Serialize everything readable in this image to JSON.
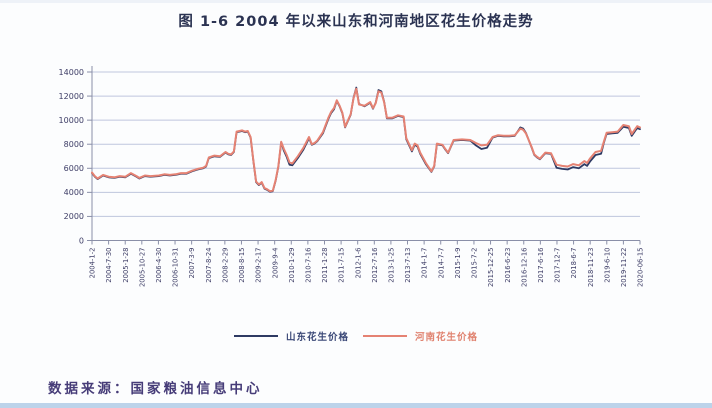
{
  "page": {
    "title": "图 1-6  2004 年以来山东和河南地区花生价格走势",
    "source_note": "数据来源：国家粮油信息中心"
  },
  "colors": {
    "shandong_line": "#2e3a63",
    "henan_line": "#e58273",
    "grid": "#bfc6dd",
    "axis": "#8a8fa8",
    "tick_text": "#3d3d66",
    "title_text": "#2b3352",
    "source_text": "#463c78",
    "bottom_strip": "#bcd3ea"
  },
  "chart_data": {
    "type": "line",
    "title": "图 1-6  2004 年以来山东和河南地区花生价格走势",
    "xlabel": "",
    "ylabel": "",
    "ylim": [
      0,
      14000
    ],
    "grid": true,
    "legend_position": "bottom",
    "y_ticks": [
      14000,
      12000,
      10000,
      8000,
      6000,
      4000,
      2000,
      0
    ],
    "x_tick_labels": [
      "2004-1-2",
      "2004-7-30",
      "2005-1-28",
      "2005-10-27",
      "2006-4-30",
      "2006-10-31",
      "2007-3-9",
      "2007-8-24",
      "2008-2-29",
      "2008-8-15",
      "2009-2-17",
      "2009-9-4",
      "2010-1-29",
      "2010-7-16",
      "2011-1-28",
      "2011-7-15",
      "2012-1-6",
      "2012-7-16",
      "2013-1-25",
      "2013-7-13",
      "2014-1-7",
      "2014-7-7",
      "2015-1-9",
      "2015-7-2",
      "2015-12-25",
      "2016-6-23",
      "2016-12-16",
      "2017-6-16",
      "2017-12-7",
      "2018-6-7",
      "2018-11-23",
      "2019-6-10",
      "2019-11-22",
      "2020-06-15"
    ],
    "x_unit": "months-since-2004-01",
    "x_range_months": [
      0,
      197
    ],
    "series": [
      {
        "name": "山东花生价格",
        "color": "#2e3a63",
        "points": [
          [
            0,
            5600
          ],
          [
            1,
            5300
          ],
          [
            2,
            5100
          ],
          [
            4,
            5400
          ],
          [
            6,
            5250
          ],
          [
            8,
            5200
          ],
          [
            10,
            5300
          ],
          [
            12,
            5250
          ],
          [
            14,
            5550
          ],
          [
            16,
            5300
          ],
          [
            17,
            5150
          ],
          [
            19,
            5350
          ],
          [
            21,
            5300
          ],
          [
            24,
            5350
          ],
          [
            26,
            5450
          ],
          [
            28,
            5400
          ],
          [
            30,
            5450
          ],
          [
            32,
            5550
          ],
          [
            34,
            5550
          ],
          [
            36,
            5750
          ],
          [
            38,
            5900
          ],
          [
            40,
            6000
          ],
          [
            41,
            6150
          ],
          [
            42,
            6850
          ],
          [
            44,
            7000
          ],
          [
            46,
            6950
          ],
          [
            48,
            7300
          ],
          [
            49,
            7150
          ],
          [
            50,
            7100
          ],
          [
            51,
            7350
          ],
          [
            52,
            9000
          ],
          [
            54,
            9100
          ],
          [
            55,
            9000
          ],
          [
            56,
            9050
          ],
          [
            57,
            8550
          ],
          [
            58,
            6650
          ],
          [
            59,
            4850
          ],
          [
            60,
            4600
          ],
          [
            61,
            4800
          ],
          [
            62,
            4300
          ],
          [
            63,
            4200
          ],
          [
            64,
            4050
          ],
          [
            65,
            4100
          ],
          [
            66,
            4950
          ],
          [
            67,
            6150
          ],
          [
            68,
            8150
          ],
          [
            69,
            7450
          ],
          [
            70,
            6950
          ],
          [
            71,
            6300
          ],
          [
            72,
            6250
          ],
          [
            74,
            6850
          ],
          [
            76,
            7550
          ],
          [
            78,
            8500
          ],
          [
            79,
            7950
          ],
          [
            80,
            8050
          ],
          [
            81,
            8250
          ],
          [
            83,
            8900
          ],
          [
            85,
            10100
          ],
          [
            86,
            10600
          ],
          [
            87,
            10900
          ],
          [
            88,
            11600
          ],
          [
            89,
            11150
          ],
          [
            90,
            10550
          ],
          [
            91,
            9400
          ],
          [
            93,
            10450
          ],
          [
            94,
            11850
          ],
          [
            95,
            12700
          ],
          [
            96,
            11350
          ],
          [
            98,
            11150
          ],
          [
            100,
            11450
          ],
          [
            101,
            10950
          ],
          [
            102,
            11450
          ],
          [
            103,
            12500
          ],
          [
            104,
            12400
          ],
          [
            105,
            11550
          ],
          [
            106,
            10150
          ],
          [
            108,
            10150
          ],
          [
            110,
            10350
          ],
          [
            112,
            10250
          ],
          [
            113,
            8400
          ],
          [
            114,
            7900
          ],
          [
            115,
            7400
          ],
          [
            116,
            7950
          ],
          [
            117,
            7800
          ],
          [
            118,
            7200
          ],
          [
            120,
            6350
          ],
          [
            122,
            5700
          ],
          [
            123,
            6150
          ],
          [
            124,
            8000
          ],
          [
            126,
            7900
          ],
          [
            127,
            7550
          ],
          [
            128,
            7250
          ],
          [
            130,
            8300
          ],
          [
            133,
            8350
          ],
          [
            136,
            8300
          ],
          [
            138,
            7900
          ],
          [
            140,
            7600
          ],
          [
            142,
            7700
          ],
          [
            144,
            8550
          ],
          [
            146,
            8700
          ],
          [
            148,
            8650
          ],
          [
            150,
            8650
          ],
          [
            152,
            8700
          ],
          [
            154,
            9400
          ],
          [
            155,
            9300
          ],
          [
            156,
            8950
          ],
          [
            158,
            7750
          ],
          [
            159,
            7100
          ],
          [
            160,
            6900
          ],
          [
            161,
            6750
          ],
          [
            163,
            7250
          ],
          [
            165,
            7200
          ],
          [
            167,
            6050
          ],
          [
            169,
            5950
          ],
          [
            171,
            5900
          ],
          [
            173,
            6100
          ],
          [
            175,
            6000
          ],
          [
            177,
            6350
          ],
          [
            178,
            6200
          ],
          [
            179,
            6550
          ],
          [
            181,
            7100
          ],
          [
            183,
            7200
          ],
          [
            184,
            8100
          ],
          [
            185,
            8850
          ],
          [
            187,
            8900
          ],
          [
            189,
            8950
          ],
          [
            191,
            9450
          ],
          [
            192,
            9400
          ],
          [
            193,
            9350
          ],
          [
            194,
            8700
          ],
          [
            196,
            9350
          ],
          [
            197,
            9250
          ]
        ]
      },
      {
        "name": "河南花生价格",
        "color": "#e58273",
        "points": [
          [
            0,
            5650
          ],
          [
            1,
            5350
          ],
          [
            2,
            5150
          ],
          [
            4,
            5450
          ],
          [
            6,
            5300
          ],
          [
            8,
            5250
          ],
          [
            10,
            5350
          ],
          [
            12,
            5300
          ],
          [
            14,
            5600
          ],
          [
            16,
            5350
          ],
          [
            17,
            5200
          ],
          [
            19,
            5400
          ],
          [
            21,
            5350
          ],
          [
            24,
            5400
          ],
          [
            26,
            5500
          ],
          [
            28,
            5450
          ],
          [
            30,
            5500
          ],
          [
            32,
            5600
          ],
          [
            34,
            5600
          ],
          [
            36,
            5800
          ],
          [
            38,
            5950
          ],
          [
            40,
            6050
          ],
          [
            41,
            6200
          ],
          [
            42,
            6900
          ],
          [
            44,
            7050
          ],
          [
            46,
            7000
          ],
          [
            48,
            7350
          ],
          [
            49,
            7200
          ],
          [
            50,
            7150
          ],
          [
            51,
            7400
          ],
          [
            52,
            9050
          ],
          [
            54,
            9150
          ],
          [
            55,
            9050
          ],
          [
            56,
            9100
          ],
          [
            57,
            8600
          ],
          [
            58,
            6700
          ],
          [
            59,
            4900
          ],
          [
            60,
            4650
          ],
          [
            61,
            4850
          ],
          [
            62,
            4350
          ],
          [
            63,
            4250
          ],
          [
            64,
            4100
          ],
          [
            65,
            4150
          ],
          [
            66,
            5000
          ],
          [
            67,
            6200
          ],
          [
            68,
            8200
          ],
          [
            69,
            7600
          ],
          [
            70,
            7100
          ],
          [
            71,
            6500
          ],
          [
            72,
            6400
          ],
          [
            74,
            7000
          ],
          [
            76,
            7700
          ],
          [
            78,
            8600
          ],
          [
            79,
            8000
          ],
          [
            80,
            8100
          ],
          [
            81,
            8300
          ],
          [
            83,
            9000
          ],
          [
            85,
            10200
          ],
          [
            86,
            10700
          ],
          [
            87,
            11000
          ],
          [
            88,
            11650
          ],
          [
            89,
            11200
          ],
          [
            90,
            10600
          ],
          [
            91,
            9450
          ],
          [
            93,
            10500
          ],
          [
            94,
            11800
          ],
          [
            95,
            12600
          ],
          [
            96,
            11300
          ],
          [
            98,
            11200
          ],
          [
            100,
            11500
          ],
          [
            101,
            11000
          ],
          [
            102,
            11400
          ],
          [
            103,
            12400
          ],
          [
            104,
            12300
          ],
          [
            105,
            11500
          ],
          [
            106,
            10200
          ],
          [
            108,
            10200
          ],
          [
            110,
            10400
          ],
          [
            112,
            10300
          ],
          [
            113,
            8500
          ],
          [
            114,
            8000
          ],
          [
            115,
            7500
          ],
          [
            116,
            8050
          ],
          [
            117,
            7900
          ],
          [
            118,
            7300
          ],
          [
            120,
            6450
          ],
          [
            122,
            5750
          ],
          [
            123,
            6200
          ],
          [
            124,
            8050
          ],
          [
            126,
            7950
          ],
          [
            127,
            7600
          ],
          [
            128,
            7300
          ],
          [
            130,
            8350
          ],
          [
            133,
            8400
          ],
          [
            136,
            8350
          ],
          [
            138,
            8100
          ],
          [
            140,
            7900
          ],
          [
            142,
            7950
          ],
          [
            144,
            8600
          ],
          [
            146,
            8750
          ],
          [
            148,
            8700
          ],
          [
            150,
            8700
          ],
          [
            152,
            8750
          ],
          [
            154,
            9300
          ],
          [
            155,
            9200
          ],
          [
            156,
            8900
          ],
          [
            158,
            7800
          ],
          [
            159,
            7150
          ],
          [
            160,
            6950
          ],
          [
            161,
            6800
          ],
          [
            163,
            7300
          ],
          [
            165,
            7250
          ],
          [
            167,
            6300
          ],
          [
            169,
            6200
          ],
          [
            171,
            6150
          ],
          [
            173,
            6350
          ],
          [
            175,
            6250
          ],
          [
            177,
            6600
          ],
          [
            178,
            6450
          ],
          [
            179,
            6800
          ],
          [
            181,
            7350
          ],
          [
            183,
            7450
          ],
          [
            184,
            8200
          ],
          [
            185,
            8950
          ],
          [
            187,
            9000
          ],
          [
            189,
            9050
          ],
          [
            191,
            9600
          ],
          [
            192,
            9550
          ],
          [
            193,
            9500
          ],
          [
            194,
            8850
          ],
          [
            196,
            9500
          ],
          [
            197,
            9400
          ]
        ]
      }
    ]
  }
}
